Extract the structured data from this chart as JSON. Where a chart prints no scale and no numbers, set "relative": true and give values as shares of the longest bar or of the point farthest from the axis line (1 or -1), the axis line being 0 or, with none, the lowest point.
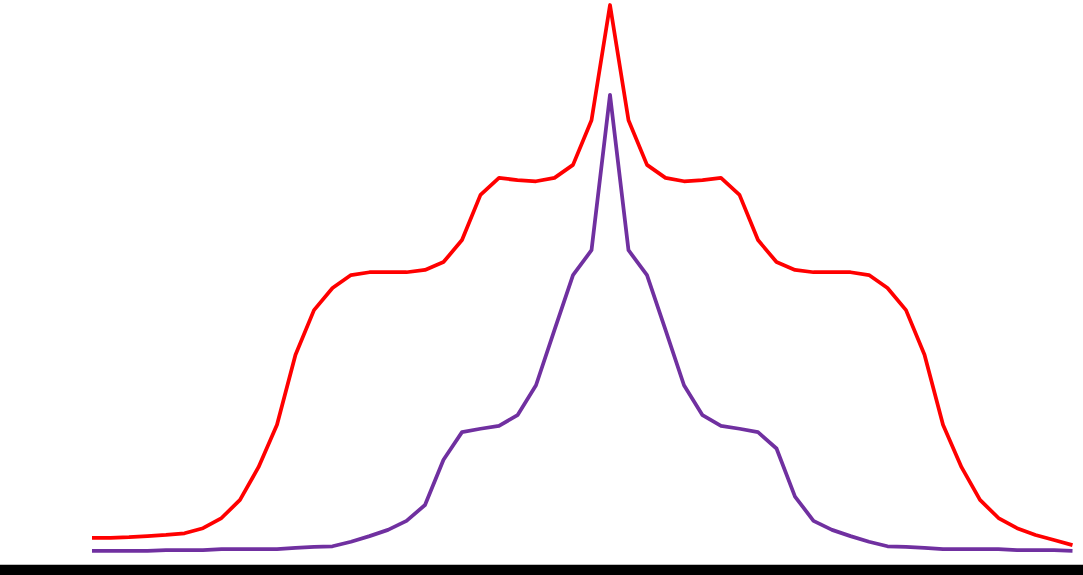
{
  "chart_data": {
    "type": "line",
    "relative": true,
    "categories": [
      null,
      null,
      null,
      null,
      null,
      null,
      null,
      null,
      null,
      null,
      null,
      null,
      null,
      null,
      null,
      null,
      null,
      null,
      null,
      null,
      null,
      null,
      null,
      null,
      null,
      null,
      null,
      null,
      null,
      null,
      null,
      null,
      null,
      null,
      null,
      null,
      null,
      null,
      null,
      null,
      null,
      null,
      null,
      null,
      null,
      null,
      null,
      null,
      null,
      null,
      null,
      null,
      null,
      null
    ],
    "series": [
      {
        "color": "#ff0000",
        "values": [
          0.057,
          0.057,
          0.058,
          0.06,
          0.062,
          0.065,
          0.074,
          0.092,
          0.124,
          0.182,
          0.257,
          0.381,
          0.46,
          0.499,
          0.522,
          0.527,
          0.527,
          0.527,
          0.531,
          0.545,
          0.584,
          0.664,
          0.694,
          0.69,
          0.688,
          0.694,
          0.717,
          0.796,
          1.0,
          0.796,
          0.717,
          0.694,
          0.688,
          0.69,
          0.694,
          0.664,
          0.584,
          0.545,
          0.531,
          0.527,
          0.527,
          0.527,
          0.522,
          0.499,
          0.46,
          0.381,
          0.257,
          0.182,
          0.124,
          0.092,
          0.074,
          0.062,
          0.053,
          0.044
        ]
      },
      {
        "color": "#7030a0",
        "values": [
          0.034,
          0.034,
          0.034,
          0.034,
          0.035,
          0.035,
          0.035,
          0.037,
          0.037,
          0.037,
          0.037,
          0.039,
          0.041,
          0.042,
          0.05,
          0.06,
          0.071,
          0.087,
          0.115,
          0.195,
          0.244,
          0.25,
          0.255,
          0.274,
          0.327,
          0.425,
          0.522,
          0.566,
          0.841,
          0.566,
          0.522,
          0.425,
          0.327,
          0.274,
          0.255,
          0.25,
          0.244,
          0.215,
          0.13,
          0.087,
          0.071,
          0.06,
          0.05,
          0.042,
          0.041,
          0.039,
          0.037,
          0.037,
          0.037,
          0.037,
          0.035,
          0.035,
          0.035,
          0.034
        ]
      }
    ],
    "grid": false,
    "marker": "none",
    "line_style": "solid"
  }
}
